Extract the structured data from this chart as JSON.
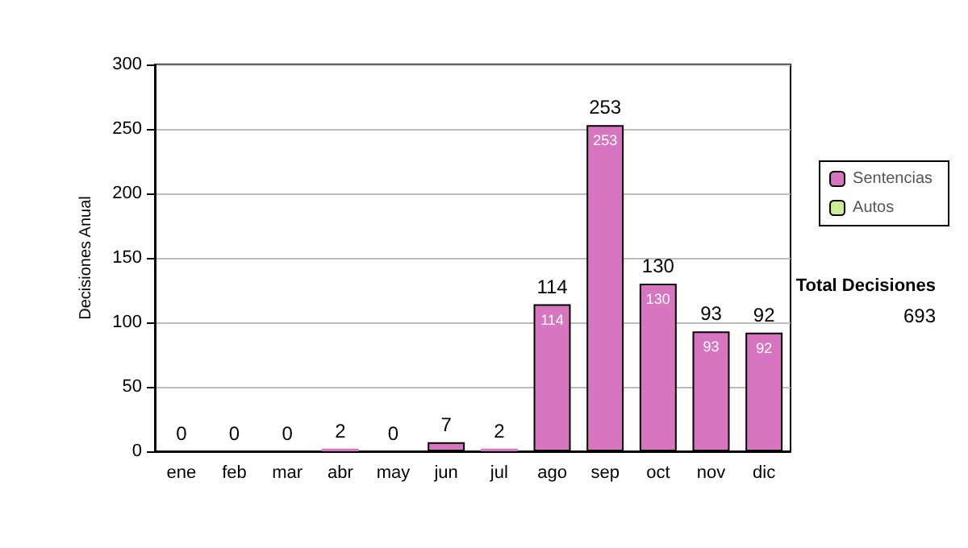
{
  "chart_data": {
    "type": "bar",
    "stacked": true,
    "ylabel": "Decisiones Anual",
    "categories": [
      "ene",
      "feb",
      "mar",
      "abr",
      "may",
      "jun",
      "jul",
      "ago",
      "sep",
      "oct",
      "nov",
      "dic"
    ],
    "series": [
      {
        "name": "Sentencias",
        "color": "#d775c0",
        "values": [
          0,
          0,
          0,
          2,
          0,
          7,
          2,
          114,
          253,
          130,
          93,
          92
        ],
        "value_labels": [
          null,
          null,
          null,
          null,
          null,
          null,
          null,
          "114",
          "253",
          "130",
          "93",
          "92"
        ]
      },
      {
        "name": "Autos",
        "color": "#ccee99",
        "values": [
          0,
          0,
          0,
          0,
          0,
          0,
          0,
          0,
          0,
          0,
          0,
          0
        ]
      }
    ],
    "totals": [
      "0",
      "0",
      "0",
      "2",
      "0",
      "7",
      "2",
      "114",
      "253",
      "130",
      "93",
      "92"
    ],
    "ylim": [
      0,
      300
    ],
    "yticks": [
      0,
      50,
      100,
      150,
      200,
      250,
      300
    ],
    "grid": "y",
    "legend": "right",
    "annotations": [
      "Total Decisiones",
      "693"
    ]
  }
}
